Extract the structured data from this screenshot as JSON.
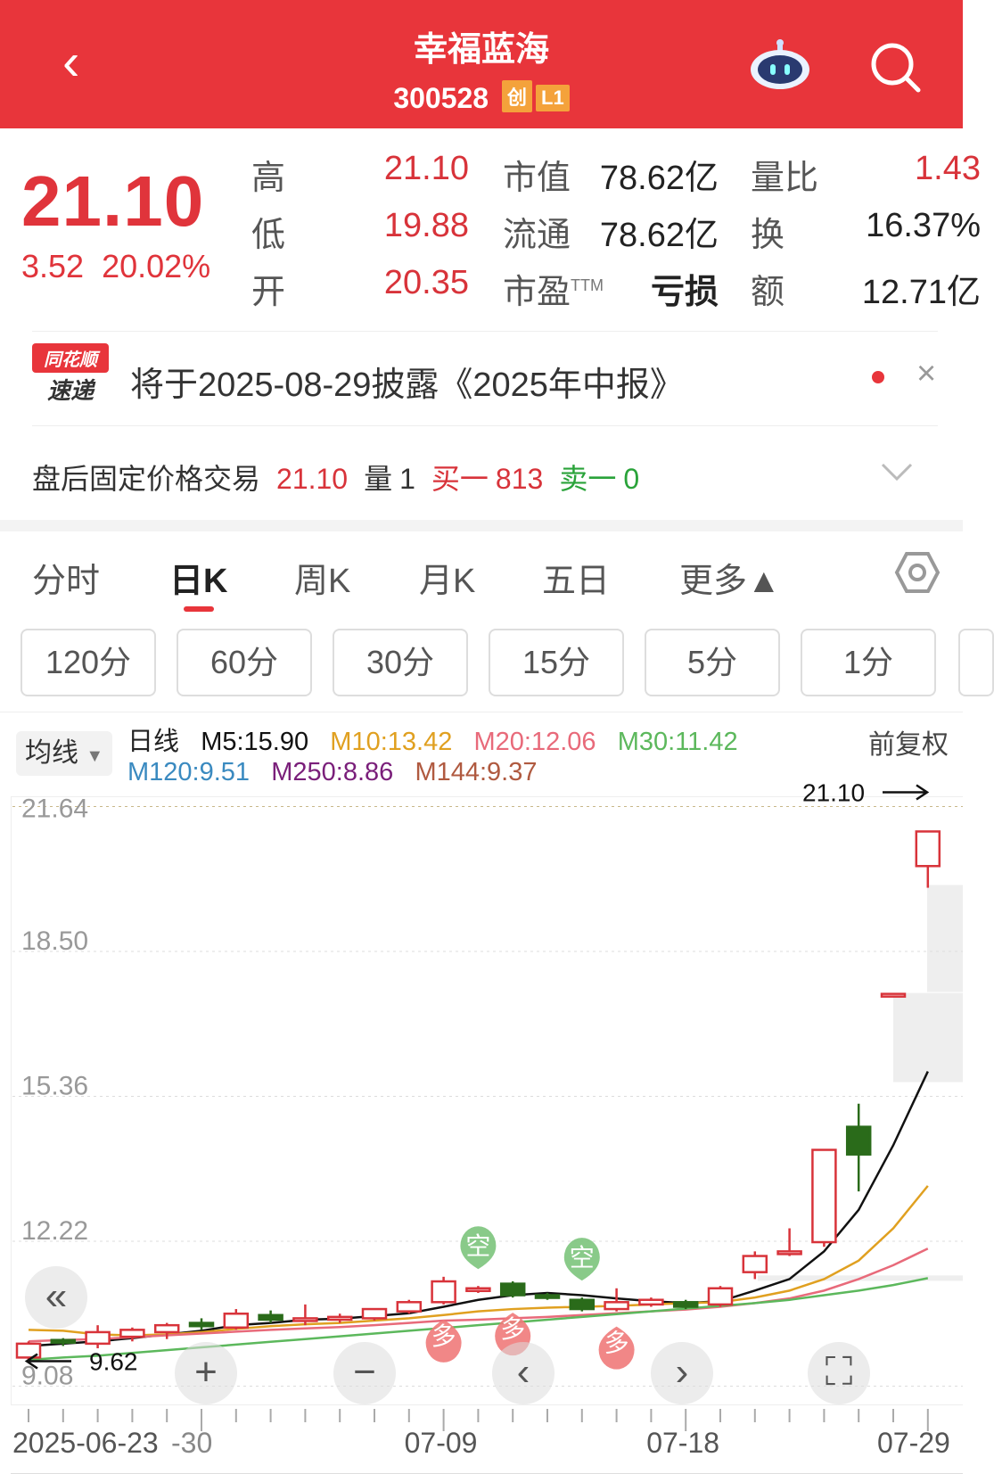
{
  "header": {
    "title": "幸福蓝海",
    "code": "300528",
    "tags": [
      "创",
      "L1"
    ],
    "back_icon": "chevron-left-icon",
    "robot_icon": "robot-icon",
    "search_icon": "search-icon",
    "color": "#e8353b"
  },
  "quote": {
    "price": "21.10",
    "change": "3.52",
    "change_pct": "20.02%",
    "rows": [
      {
        "l1": "高",
        "v1": "21.10",
        "l2": "市值",
        "v2": "78.62亿",
        "l3": "量比",
        "v3": "1.43"
      },
      {
        "l1": "低",
        "v1": "19.88",
        "l2": "流通",
        "v2": "78.62亿",
        "l3": "换",
        "v3": "16.37%"
      },
      {
        "l1": "开",
        "v1": "20.35",
        "l2": "市盈",
        "l2sup": "TTM",
        "v2": "亏损",
        "l3": "额",
        "v3": "12.71亿"
      }
    ]
  },
  "news": {
    "logo_top": "同花顺",
    "logo_bottom": "速递",
    "text": "将于2025-08-29披露《2025年中报》",
    "close": "×"
  },
  "after_hours": {
    "label": "盘后固定价格交易",
    "price": "21.10",
    "vol_label": "量",
    "vol": "1",
    "buy_label": "买一",
    "buy": "813",
    "sell_label": "卖一",
    "sell": "0"
  },
  "tabs": [
    {
      "label": "分时"
    },
    {
      "label": "日K",
      "active": true
    },
    {
      "label": "周K"
    },
    {
      "label": "月K"
    },
    {
      "label": "五日"
    },
    {
      "label": "更多▲"
    }
  ],
  "periods": [
    "120分",
    "60分",
    "30分",
    "15分",
    "5分",
    "1分"
  ],
  "ma_legend": {
    "selector": "均线",
    "type": "日线",
    "m5": "M5:15.90",
    "m10": "M10:13.42",
    "m20": "M20:12.06",
    "m30": "M30:11.42",
    "m120": "M120:9.51",
    "m250": "M250:8.86",
    "m144": "M144:9.37",
    "adjust": "前复权",
    "colors": {
      "m5": "#111111",
      "m10": "#e0a020",
      "m20": "#e86a7a",
      "m30": "#5cb85c",
      "m120": "#3a8ac0",
      "m250": "#7a1f7a",
      "m144": "#b05a40"
    }
  },
  "chart_data": {
    "type": "candlestick",
    "yticks": [
      "21.64",
      "18.50",
      "15.36",
      "12.22",
      "9.08"
    ],
    "ylim": [
      9.08,
      21.64
    ],
    "xtick_labels": [
      {
        "date": "2025-06-23",
        "label": "2025-06-23"
      },
      {
        "date": "06-30",
        "label": "-30"
      },
      {
        "date": "07-09",
        "label": "07-09"
      },
      {
        "date": "07-18",
        "label": "07-18"
      },
      {
        "date": "07-29",
        "label": "07-29"
      }
    ],
    "max_label": "21.10",
    "min_label": "9.62",
    "up_color": "#d8333a",
    "down_color": "#2a6b1a",
    "dates": [
      "06-23",
      "06-24",
      "06-25",
      "06-26",
      "06-27",
      "06-30",
      "07-01",
      "07-02",
      "07-03",
      "07-04",
      "07-07",
      "07-08",
      "07-09",
      "07-10",
      "07-11",
      "07-14",
      "07-15",
      "07-16",
      "07-17",
      "07-18",
      "07-21",
      "07-22",
      "07-23",
      "07-24",
      "07-25",
      "07-28",
      "07-29"
    ],
    "ohlc": [
      [
        9.7,
        10.05,
        9.62,
        10.0
      ],
      [
        10.08,
        10.12,
        9.95,
        10.05
      ],
      [
        10.0,
        10.4,
        9.9,
        10.25
      ],
      [
        10.15,
        10.35,
        10.05,
        10.3
      ],
      [
        10.25,
        10.45,
        10.1,
        10.4
      ],
      [
        10.45,
        10.55,
        10.3,
        10.38
      ],
      [
        10.35,
        10.75,
        10.3,
        10.65
      ],
      [
        10.62,
        10.72,
        10.45,
        10.52
      ],
      [
        10.5,
        10.85,
        10.4,
        10.55
      ],
      [
        10.52,
        10.65,
        10.45,
        10.58
      ],
      [
        10.55,
        10.7,
        10.5,
        10.75
      ],
      [
        10.7,
        10.95,
        10.65,
        10.9
      ],
      [
        10.9,
        11.45,
        10.85,
        11.35
      ],
      [
        11.2,
        11.25,
        11.1,
        11.2
      ],
      [
        11.3,
        11.35,
        11.0,
        11.05
      ],
      [
        11.05,
        11.1,
        10.95,
        11.0
      ],
      [
        10.95,
        11.0,
        10.7,
        10.75
      ],
      [
        10.75,
        11.2,
        10.7,
        10.9
      ],
      [
        10.85,
        11.0,
        10.8,
        10.95
      ],
      [
        10.9,
        10.95,
        10.75,
        10.8
      ],
      [
        10.85,
        11.25,
        10.8,
        11.2
      ],
      [
        11.55,
        12.0,
        11.4,
        11.9
      ],
      [
        12.0,
        12.5,
        11.9,
        12.0
      ],
      [
        12.2,
        14.2,
        12.1,
        14.2
      ],
      [
        14.7,
        15.2,
        13.3,
        14.1
      ],
      [
        17.58,
        17.58,
        17.58,
        17.58
      ],
      [
        20.35,
        21.1,
        19.88,
        21.1
      ]
    ],
    "series": [
      {
        "name": "M5",
        "values": [
          9.95,
          10.0,
          10.05,
          10.12,
          10.2,
          10.28,
          10.4,
          10.45,
          10.52,
          10.54,
          10.6,
          10.66,
          10.8,
          10.95,
          11.05,
          11.1,
          11.05,
          10.98,
          10.92,
          10.88,
          10.92,
          11.15,
          11.4,
          12.0,
          12.9,
          14.3,
          15.9
        ]
      },
      {
        "name": "M10",
        "values": [
          10.3,
          10.28,
          10.2,
          10.18,
          10.2,
          10.25,
          10.32,
          10.38,
          10.42,
          10.45,
          10.5,
          10.55,
          10.62,
          10.7,
          10.75,
          10.78,
          10.8,
          10.82,
          10.85,
          10.88,
          10.9,
          11.0,
          11.15,
          11.4,
          11.8,
          12.5,
          13.42
        ]
      },
      {
        "name": "M20",
        "values": [
          10.05,
          10.08,
          10.1,
          10.14,
          10.18,
          10.22,
          10.26,
          10.3,
          10.33,
          10.36,
          10.4,
          10.45,
          10.5,
          10.52,
          10.55,
          10.58,
          10.62,
          10.66,
          10.7,
          10.74,
          10.8,
          10.88,
          10.98,
          11.15,
          11.4,
          11.7,
          12.06
        ]
      },
      {
        "name": "M30",
        "values": [
          9.65,
          9.7,
          9.74,
          9.8,
          9.86,
          9.92,
          9.98,
          10.04,
          10.1,
          10.16,
          10.22,
          10.28,
          10.34,
          10.4,
          10.46,
          10.52,
          10.58,
          10.64,
          10.7,
          10.76,
          10.82,
          10.88,
          10.95,
          11.05,
          11.15,
          11.27,
          11.42
        ]
      }
    ],
    "signals": [
      {
        "date": "07-10",
        "label": "空",
        "kind": "short"
      },
      {
        "date": "07-15",
        "label": "空",
        "kind": "short"
      },
      {
        "date": "07-09",
        "label": "多",
        "kind": "long"
      },
      {
        "date": "07-11",
        "label": "多",
        "kind": "long"
      },
      {
        "date": "07-16",
        "label": "多",
        "kind": "long"
      }
    ]
  },
  "overlay": {
    "first": "«",
    "zoom_in": "+",
    "zoom_out": "−",
    "prev": "‹",
    "next": "›",
    "fullscreen": "⛶"
  }
}
